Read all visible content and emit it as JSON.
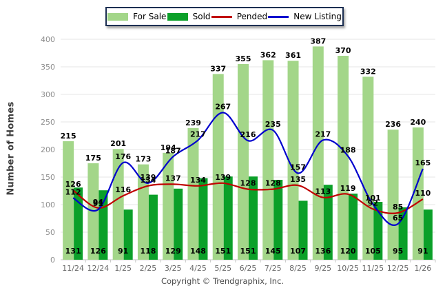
{
  "legend": {
    "items": [
      {
        "label": "For Sale",
        "type": "bar",
        "color": "#a3d689"
      },
      {
        "label": "Sold",
        "type": "bar",
        "color": "#0ba029"
      },
      {
        "label": "Pended",
        "type": "line",
        "color": "#c00000"
      },
      {
        "label": "New Listing",
        "type": "line",
        "color": "#0000cd"
      }
    ]
  },
  "axes": {
    "ylabel": "Number of Homes",
    "yticks": [
      0,
      50,
      100,
      150,
      200,
      250,
      300,
      350,
      400
    ]
  },
  "footer": {
    "text": "Copyright © Trendgraphix, Inc."
  },
  "colors": {
    "for_sale": "#a3d689",
    "sold": "#0ba029",
    "pended": "#c00000",
    "new_listing": "#0000cd",
    "grid": "#e5e5e5",
    "baseline": "#c0c0c0",
    "tick": "#c8c8c8",
    "ytick_text": "#8c8c8c",
    "xtick_text": "#666666",
    "value_text": "#000000"
  },
  "chart_data": {
    "type": "bar",
    "title": "",
    "xlabel": "",
    "ylabel": "Number of Homes",
    "ylim": [
      0,
      400
    ],
    "grid": true,
    "legend_position": "top",
    "categories": [
      "11/24",
      "12/24",
      "1/25",
      "2/25",
      "3/25",
      "4/25",
      "5/25",
      "6/25",
      "7/25",
      "8/25",
      "9/25",
      "10/25",
      "11/25",
      "12/25",
      "1/26"
    ],
    "series": [
      {
        "name": "For Sale",
        "type": "bar",
        "color": "#a3d689",
        "values": [
          215,
          175,
          201,
          173,
          194,
          239,
          337,
          355,
          362,
          361,
          387,
          370,
          332,
          236,
          240
        ]
      },
      {
        "name": "Sold",
        "type": "bar",
        "color": "#0ba029",
        "values": [
          131,
          126,
          91,
          118,
          129,
          148,
          151,
          151,
          145,
          107,
          136,
          120,
          105,
          95,
          91
        ]
      },
      {
        "name": "Pended",
        "type": "line",
        "color": "#c00000",
        "values": [
          126,
          94,
          116,
          134,
          137,
          134,
          139,
          128,
          128,
          135,
          113,
          119,
          92,
          85,
          110
        ]
      },
      {
        "name": "New Listing",
        "type": "line",
        "color": "#0000cd",
        "values": [
          112,
          91,
          176,
          139,
          187,
          217,
          267,
          216,
          235,
          157,
          217,
          188,
          101,
          65,
          165
        ]
      }
    ]
  }
}
